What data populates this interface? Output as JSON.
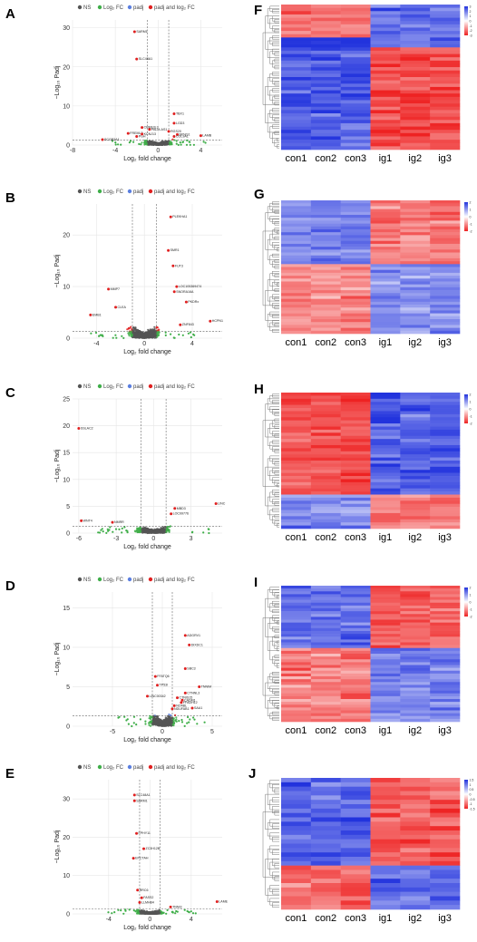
{
  "legend": {
    "ns": "NS",
    "log2fc": "Log₂ FC",
    "padj": "padj",
    "both": "padj and log₂ FC"
  },
  "colors": {
    "ns": "#555555",
    "log2fc": "#3fae49",
    "padj": "#5b7fe0",
    "both": "#e02020",
    "hm_low": "#ee2222",
    "hm_mid": "#ffffff",
    "hm_high": "#2233dd"
  },
  "axis_labels": {
    "x": "Log₂ fold change",
    "y": "−Log₁₀ Padj"
  },
  "heatmap_columns": [
    "con1",
    "con2",
    "con3",
    "ig1",
    "ig2",
    "ig3"
  ],
  "volcano_panels": [
    {
      "letter": "A",
      "xticks": [
        "-8",
        "-4",
        "0",
        "4"
      ],
      "yticks": [
        "0",
        "10",
        "20",
        "30"
      ],
      "genes": [
        "SARM1",
        "SLC48A1",
        "CREB3L3",
        "FREML2",
        "PGH",
        "TBX1",
        "LGD3",
        "PALM-AS1",
        "KCNJ13",
        "NPHS1",
        "COL9A1",
        "LAMB",
        "SCGB2A1",
        "RGS20"
      ]
    },
    {
      "letter": "B",
      "xticks": [
        "-4",
        "0",
        "4"
      ],
      "yticks": [
        "0",
        "10",
        "20"
      ],
      "genes": [
        "PLEKHA1",
        "SMR1",
        "FUT3",
        "LOC105369474",
        "SNORA16A",
        "PKDRx",
        "MMP7",
        "EMB1",
        "CLEA",
        "HCPN1",
        "ZNF843"
      ]
    },
    {
      "letter": "C",
      "xticks": [
        "-6",
        "-3",
        "0",
        "3"
      ],
      "yticks": [
        "0",
        "5",
        "10",
        "15",
        "20",
        "25"
      ],
      "genes": [
        "SSLAC2",
        "LINC",
        "WNT4",
        "NMRR",
        "MBD3",
        "LOC99776"
      ]
    },
    {
      "letter": "D",
      "xticks": [
        "-5",
        "0",
        "5"
      ],
      "yticks": [
        "0",
        "5",
        "10",
        "15"
      ],
      "genes": [
        "ADGRV1",
        "DIXDC1",
        "SBC3",
        "FFATQ6",
        "TP53I",
        "CTNNL3",
        "TNNIM",
        "LINC00342",
        "CTNIS15",
        "FFADH12",
        "NO4BL",
        "SAA1",
        "CADM1",
        "NDUFAB1"
      ]
    },
    {
      "letter": "E",
      "xticks": [
        "-4",
        "0",
        "4"
      ],
      "yticks": [
        "0",
        "10",
        "20",
        "30"
      ],
      "genes": [
        "SLC48A1",
        "SARM1",
        "FPHY11",
        "ZC3H12B",
        "EPCTAH",
        "RRC6",
        "FASS2",
        "LLMHB4",
        "TNNI3",
        "LAME"
      ]
    }
  ],
  "heatmap_panels": [
    {
      "letter": "F",
      "scale": [
        "3",
        "2",
        "1",
        "0",
        "-1",
        "-2",
        "-3"
      ]
    },
    {
      "letter": "G",
      "scale": [
        "2",
        "1",
        "0",
        "-1",
        "-2"
      ]
    },
    {
      "letter": "H",
      "scale": [
        "2",
        "1",
        "0",
        "-1",
        "-2"
      ]
    },
    {
      "letter": "I",
      "scale": [
        "2",
        "1",
        "0",
        "-1",
        "-2"
      ]
    },
    {
      "letter": "J",
      "scale": [
        "1.5",
        "1",
        "0.5",
        "0",
        "-0.5",
        "-1",
        "-1.5"
      ]
    }
  ]
}
